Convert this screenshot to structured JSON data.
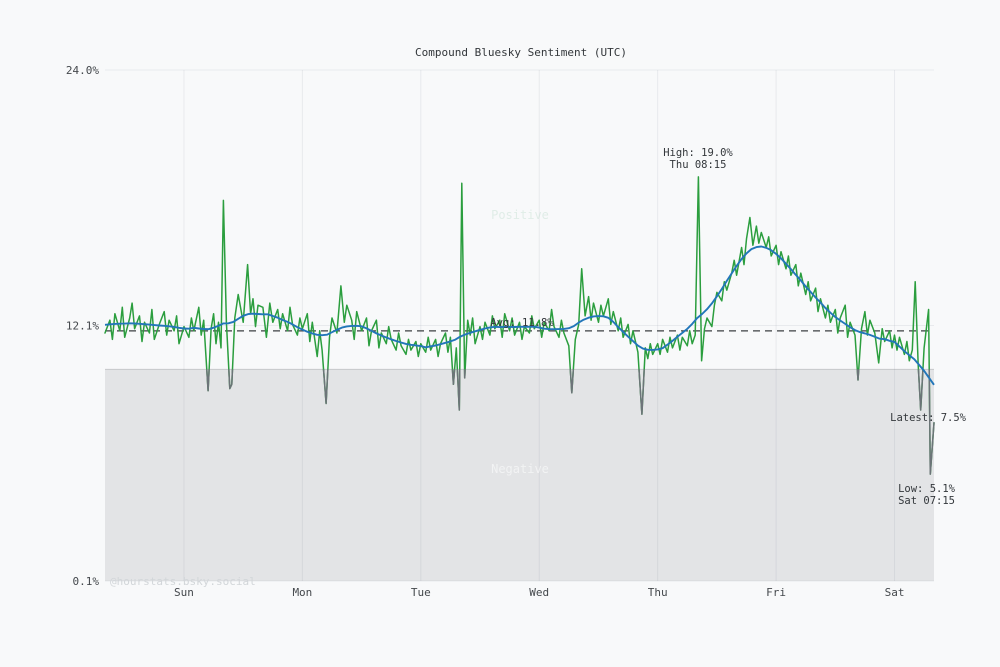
{
  "title": "Compound Bluesky Sentiment (UTC)",
  "watermark": "@hourstats.bsky.social",
  "colors": {
    "background": "#f8f9fa",
    "green_line": "#2b9e3e",
    "blue_line": "#2276b9",
    "gray_line": "#6d7479",
    "negative_fill": "#e3e4e6",
    "negative_edge": "#c6c8ca",
    "grid": "rgba(100,110,125,0.10)",
    "avg_line": "#3c4043",
    "tick_text": "#44484c"
  },
  "chart_data": {
    "type": "line",
    "title": "Compound Bluesky Sentiment (UTC)",
    "xlabel": "",
    "ylabel": "",
    "x_unit": "hours (t=0 at Sat 08:00, one week shown, 15-min sentiment samples)",
    "x_range": [
      0,
      168
    ],
    "ylim": [
      0.1,
      24.0
    ],
    "grid": true,
    "y_ticks": [
      {
        "value": 24.0,
        "label": "24.0%"
      },
      {
        "value": 12.05,
        "label": "12.1%"
      },
      {
        "value": 0.1,
        "label": "0.1%"
      }
    ],
    "x_ticks": [
      {
        "t": 16,
        "label": "Sun"
      },
      {
        "t": 40,
        "label": "Mon"
      },
      {
        "t": 64,
        "label": "Tue"
      },
      {
        "t": 88,
        "label": "Wed"
      },
      {
        "t": 112,
        "label": "Thu"
      },
      {
        "t": 136,
        "label": "Fri"
      },
      {
        "t": 160,
        "label": "Sat"
      }
    ],
    "threshold": 10.0,
    "average": 11.8,
    "zones": {
      "positive_label": "Positive",
      "negative_label": "Negative"
    },
    "annotations": {
      "high": {
        "line1": "High: 19.0%",
        "line2": "Thu 08:15",
        "t": 120.25,
        "value": 19.0
      },
      "avg_label": "Avg: 11.8%",
      "latest": {
        "label": "Latest: 7.5%",
        "value": 7.5,
        "t": 168
      },
      "low": {
        "line1": "Low: 5.1%",
        "line2": "Sat 07:15",
        "t": 167.25,
        "value": 5.1
      }
    },
    "series": [
      {
        "name": "sentiment",
        "style": "jagged",
        "points": [
          [
            0,
            11.7
          ],
          [
            1,
            12.3
          ],
          [
            1.5,
            11.4
          ],
          [
            2,
            12.6
          ],
          [
            3,
            11.8
          ],
          [
            3.5,
            12.9
          ],
          [
            4,
            11.5
          ],
          [
            5,
            12.4
          ],
          [
            5.5,
            13.1
          ],
          [
            6,
            11.9
          ],
          [
            7,
            12.5
          ],
          [
            7.5,
            11.3
          ],
          [
            8,
            12.2
          ],
          [
            9,
            11.7
          ],
          [
            9.5,
            12.8
          ],
          [
            10,
            11.4
          ],
          [
            11,
            12.1
          ],
          [
            12,
            12.7
          ],
          [
            12.5,
            11.6
          ],
          [
            13,
            12.3
          ],
          [
            14,
            11.8
          ],
          [
            14.5,
            12.5
          ],
          [
            15,
            11.2
          ],
          [
            16,
            12.0
          ],
          [
            17,
            11.5
          ],
          [
            17.5,
            12.4
          ],
          [
            18,
            11.8
          ],
          [
            19,
            12.9
          ],
          [
            19.5,
            11.6
          ],
          [
            20,
            12.3
          ],
          [
            20.9,
            9.0
          ],
          [
            21.5,
            11.9
          ],
          [
            22,
            12.6
          ],
          [
            22.5,
            11.2
          ],
          [
            23,
            12.2
          ],
          [
            23.5,
            11.0
          ],
          [
            24,
            17.9
          ],
          [
            24.6,
            12.2
          ],
          [
            25.3,
            9.1
          ],
          [
            25.7,
            9.3
          ],
          [
            26.3,
            12.4
          ],
          [
            27,
            13.5
          ],
          [
            28,
            12.2
          ],
          [
            28.9,
            14.9
          ],
          [
            29.5,
            12.6
          ],
          [
            30,
            13.3
          ],
          [
            30.5,
            12.0
          ],
          [
            31,
            13.0
          ],
          [
            32,
            12.9
          ],
          [
            32.7,
            11.5
          ],
          [
            33.4,
            13.1
          ],
          [
            34,
            12.2
          ],
          [
            35,
            12.8
          ],
          [
            35.5,
            11.9
          ],
          [
            36,
            12.6
          ],
          [
            37,
            11.8
          ],
          [
            37.5,
            12.9
          ],
          [
            38,
            12.1
          ],
          [
            39,
            11.6
          ],
          [
            39.5,
            12.4
          ],
          [
            40,
            11.9
          ],
          [
            41,
            12.6
          ],
          [
            41.5,
            11.3
          ],
          [
            42,
            12.2
          ],
          [
            43,
            10.6
          ],
          [
            43.5,
            11.8
          ],
          [
            44,
            10.9
          ],
          [
            44.8,
            8.4
          ],
          [
            45.5,
            11.5
          ],
          [
            46,
            12.4
          ],
          [
            47,
            11.7
          ],
          [
            47.8,
            13.9
          ],
          [
            48.5,
            12.2
          ],
          [
            49,
            13.0
          ],
          [
            50,
            12.3
          ],
          [
            50.5,
            11.4
          ],
          [
            51,
            12.7
          ],
          [
            52,
            11.8
          ],
          [
            53,
            12.4
          ],
          [
            53.5,
            11.1
          ],
          [
            54,
            11.8
          ],
          [
            55,
            12.3
          ],
          [
            55.5,
            11.0
          ],
          [
            56,
            11.7
          ],
          [
            57,
            11.2
          ],
          [
            57.5,
            12.0
          ],
          [
            58,
            11.4
          ],
          [
            59,
            10.9
          ],
          [
            59.5,
            11.7
          ],
          [
            60,
            11.1
          ],
          [
            61,
            10.7
          ],
          [
            61.5,
            11.4
          ],
          [
            62,
            10.9
          ],
          [
            63,
            11.3
          ],
          [
            63.5,
            10.6
          ],
          [
            64,
            11.2
          ],
          [
            65,
            10.8
          ],
          [
            65.5,
            11.5
          ],
          [
            66,
            10.9
          ],
          [
            67,
            11.4
          ],
          [
            67.5,
            10.6
          ],
          [
            68,
            11.2
          ],
          [
            69,
            11.7
          ],
          [
            69.5,
            10.8
          ],
          [
            70,
            11.5
          ],
          [
            70.6,
            9.3
          ],
          [
            71.2,
            11.0
          ],
          [
            71.8,
            8.1
          ],
          [
            72.3,
            18.7
          ],
          [
            72.9,
            9.6
          ],
          [
            73.5,
            12.3
          ],
          [
            74,
            11.6
          ],
          [
            74.5,
            12.4
          ],
          [
            75,
            11.2
          ],
          [
            76,
            12.0
          ],
          [
            76.5,
            11.4
          ],
          [
            77,
            12.2
          ],
          [
            78,
            11.6
          ],
          [
            78.5,
            12.5
          ],
          [
            79,
            11.9
          ],
          [
            80,
            12.3
          ],
          [
            80.5,
            11.5
          ],
          [
            81,
            12.6
          ],
          [
            82,
            11.8
          ],
          [
            82.5,
            12.4
          ],
          [
            83,
            11.6
          ],
          [
            84,
            12.2
          ],
          [
            84.5,
            11.4
          ],
          [
            85,
            12.0
          ],
          [
            86,
            11.7
          ],
          [
            86.5,
            12.5
          ],
          [
            87,
            11.9
          ],
          [
            88,
            12.3
          ],
          [
            88.5,
            11.5
          ],
          [
            89,
            12.2
          ],
          [
            90,
            11.8
          ],
          [
            90.5,
            12.8
          ],
          [
            91,
            12.0
          ],
          [
            92,
            11.5
          ],
          [
            92.5,
            12.3
          ],
          [
            93,
            11.7
          ],
          [
            94,
            11.1
          ],
          [
            94.6,
            8.9
          ],
          [
            95.3,
            11.4
          ],
          [
            96,
            12.1
          ],
          [
            96.6,
            14.7
          ],
          [
            97.3,
            12.5
          ],
          [
            98,
            13.4
          ],
          [
            98.5,
            12.3
          ],
          [
            99,
            13.1
          ],
          [
            100,
            12.2
          ],
          [
            100.5,
            13.0
          ],
          [
            101,
            12.5
          ],
          [
            102,
            13.3
          ],
          [
            102.5,
            12.1
          ],
          [
            103,
            12.7
          ],
          [
            104,
            11.8
          ],
          [
            104.5,
            12.4
          ],
          [
            105,
            11.5
          ],
          [
            106,
            12.1
          ],
          [
            106.5,
            11.2
          ],
          [
            107,
            11.8
          ],
          [
            108,
            10.8
          ],
          [
            108.8,
            7.9
          ],
          [
            109.5,
            11.0
          ],
          [
            110,
            10.5
          ],
          [
            110.5,
            11.2
          ],
          [
            111,
            10.7
          ],
          [
            112,
            11.2
          ],
          [
            112.5,
            10.7
          ],
          [
            113,
            11.4
          ],
          [
            114,
            10.8
          ],
          [
            114.5,
            11.5
          ],
          [
            115,
            11.0
          ],
          [
            116,
            11.6
          ],
          [
            116.5,
            10.9
          ],
          [
            117,
            11.5
          ],
          [
            118,
            11.1
          ],
          [
            118.5,
            11.8
          ],
          [
            119,
            11.2
          ],
          [
            119.6,
            11.6
          ],
          [
            120.25,
            19.0
          ],
          [
            120.9,
            10.4
          ],
          [
            121.5,
            11.9
          ],
          [
            122,
            12.4
          ],
          [
            123,
            12.0
          ],
          [
            123.5,
            13.0
          ],
          [
            124,
            13.6
          ],
          [
            125,
            13.2
          ],
          [
            125.5,
            14.1
          ],
          [
            126,
            13.7
          ],
          [
            127,
            14.5
          ],
          [
            127.5,
            15.1
          ],
          [
            128,
            14.4
          ],
          [
            129,
            15.7
          ],
          [
            129.5,
            14.9
          ],
          [
            130,
            16.1
          ],
          [
            130.7,
            17.1
          ],
          [
            131.3,
            15.8
          ],
          [
            132,
            16.7
          ],
          [
            132.5,
            15.9
          ],
          [
            133,
            16.4
          ],
          [
            134,
            15.7
          ],
          [
            134.5,
            16.2
          ],
          [
            135,
            15.3
          ],
          [
            136,
            15.8
          ],
          [
            136.5,
            14.9
          ],
          [
            137,
            15.5
          ],
          [
            138,
            14.7
          ],
          [
            138.5,
            15.3
          ],
          [
            139,
            14.4
          ],
          [
            140,
            14.9
          ],
          [
            140.5,
            13.9
          ],
          [
            141,
            14.5
          ],
          [
            142,
            13.5
          ],
          [
            142.5,
            14.1
          ],
          [
            143,
            13.2
          ],
          [
            144,
            13.8
          ],
          [
            144.5,
            12.7
          ],
          [
            145,
            13.3
          ],
          [
            146,
            12.4
          ],
          [
            146.5,
            13.0
          ],
          [
            147,
            12.2
          ],
          [
            148,
            12.8
          ],
          [
            148.5,
            11.7
          ],
          [
            149,
            12.4
          ],
          [
            150,
            13.0
          ],
          [
            150.5,
            11.5
          ],
          [
            151,
            12.2
          ],
          [
            152,
            11.6
          ],
          [
            152.6,
            9.5
          ],
          [
            153.3,
            11.9
          ],
          [
            154,
            12.7
          ],
          [
            154.5,
            11.6
          ],
          [
            155,
            12.3
          ],
          [
            156,
            11.7
          ],
          [
            156.8,
            10.3
          ],
          [
            157.5,
            11.9
          ],
          [
            158,
            11.3
          ],
          [
            159,
            11.8
          ],
          [
            159.5,
            11.0
          ],
          [
            160,
            11.6
          ],
          [
            160.5,
            10.9
          ],
          [
            161,
            11.5
          ],
          [
            162,
            10.7
          ],
          [
            162.5,
            11.3
          ],
          [
            163,
            10.4
          ],
          [
            163.6,
            10.9
          ],
          [
            164.2,
            14.1
          ],
          [
            164.8,
            10.2
          ],
          [
            165.3,
            8.1
          ],
          [
            166,
            11.0
          ],
          [
            166.9,
            12.8
          ],
          [
            167.25,
            5.1
          ],
          [
            167.6,
            6.2
          ],
          [
            168,
            7.5
          ]
        ]
      },
      {
        "name": "smoothed trend",
        "style": "smooth",
        "derived": "triangular moving average of sentiment, ±7h window"
      }
    ]
  }
}
